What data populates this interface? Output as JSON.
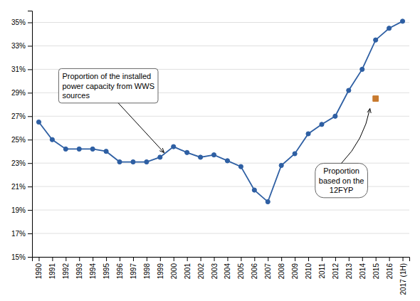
{
  "chart_data": {
    "type": "line",
    "categories": [
      "1990",
      "1991",
      "1992",
      "1993",
      "1994",
      "1995",
      "1996",
      "1997",
      "1998",
      "1999",
      "2000",
      "2001",
      "2002",
      "2003",
      "2004",
      "2005",
      "2006",
      "2007",
      "2008",
      "2009",
      "2010",
      "2011",
      "2012",
      "2013",
      "2014",
      "2015",
      "2016",
      "2017 (1H)"
    ],
    "series": [
      {
        "color": "#2E5FA3",
        "marker": "circle",
        "values": [
          0.265,
          0.25,
          0.242,
          0.242,
          0.242,
          0.24,
          0.231,
          0.231,
          0.231,
          0.235,
          0.244,
          0.239,
          0.235,
          0.237,
          0.232,
          0.227,
          0.207,
          0.197,
          0.228,
          0.238,
          0.255,
          0.263,
          0.27,
          0.292,
          0.31,
          0.335,
          0.345,
          0.351
        ]
      },
      {
        "type": "scatter",
        "color": "#C87A2E",
        "marker": "square",
        "values": [
          null,
          null,
          null,
          null,
          null,
          null,
          null,
          null,
          null,
          null,
          null,
          null,
          null,
          null,
          null,
          null,
          null,
          null,
          null,
          null,
          null,
          null,
          null,
          null,
          null,
          0.285,
          null,
          null
        ]
      }
    ],
    "ylim": [
      0.15,
      0.36
    ],
    "yticks": [
      {
        "value": 0.15,
        "label": "15%"
      },
      {
        "value": 0.17,
        "label": "17%"
      },
      {
        "value": 0.19,
        "label": "19%"
      },
      {
        "value": 0.21,
        "label": "21%"
      },
      {
        "value": 0.23,
        "label": "23%"
      },
      {
        "value": 0.25,
        "label": "25%"
      },
      {
        "value": 0.27,
        "label": "27%"
      },
      {
        "value": 0.29,
        "label": "29%"
      },
      {
        "value": 0.31,
        "label": "31%"
      },
      {
        "value": 0.33,
        "label": "33%"
      },
      {
        "value": 0.35,
        "label": "35%"
      }
    ],
    "grid": true,
    "annotations": [
      "Proportion of the installed\npower capacity from WWS\nsources",
      "Proportion\nbased on the\n12FYP"
    ]
  }
}
